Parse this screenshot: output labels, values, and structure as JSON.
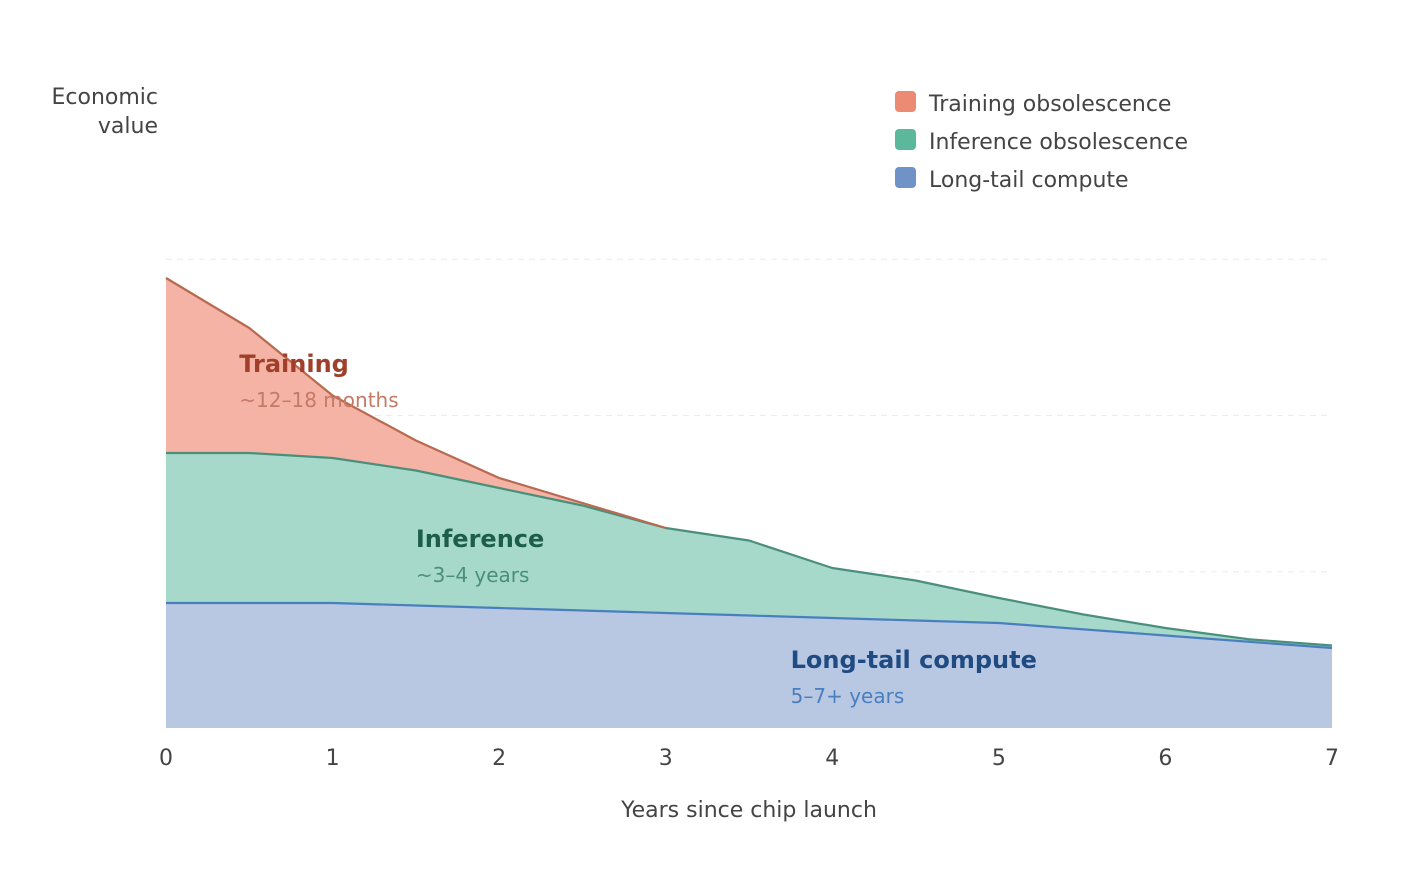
{
  "chart_data": {
    "type": "area",
    "stacked": true,
    "x": [
      0,
      0.5,
      1,
      1.5,
      2,
      2.5,
      3,
      3.5,
      4,
      4.5,
      5,
      5.5,
      6,
      6.5,
      7
    ],
    "xlabel": "Years since chip launch",
    "ylabel": "Economic value",
    "xlim": [
      0,
      7
    ],
    "ylim": [
      0,
      5
    ],
    "x_ticks": [
      "0",
      "1",
      "2",
      "3",
      "4",
      "5",
      "6",
      "7"
    ],
    "y_ticks_shown": false,
    "grid": "horizontal dashed, faint",
    "legend_position": "top-right",
    "series": [
      {
        "name": "Long-tail compute",
        "color": "#6f93c6",
        "fill": "#b8c8e2",
        "line": "#4a7fbf",
        "values": [
          1.0,
          1.0,
          1.0,
          0.98,
          0.96,
          0.94,
          0.92,
          0.9,
          0.88,
          0.86,
          0.84,
          0.79,
          0.74,
          0.69,
          0.64
        ]
      },
      {
        "name": "Inference obsolescence",
        "color": "#5bb89b",
        "fill": "#a6d9c9",
        "line": "#4a8f7c",
        "values": [
          1.2,
          1.2,
          1.16,
          1.08,
          0.96,
          0.84,
          0.68,
          0.6,
          0.4,
          0.32,
          0.2,
          0.12,
          0.06,
          0.02,
          0.02
        ]
      },
      {
        "name": "Training obsolescence",
        "color": "#ec8a74",
        "fill": "#f4b3a5",
        "line": "#b86a50",
        "values": [
          1.4,
          1.0,
          0.5,
          0.24,
          0.08,
          0.02,
          0.0,
          0.0,
          0.0,
          0.0,
          0.0,
          0.0,
          0.0,
          0.0,
          0.0
        ]
      }
    ],
    "annotations": [
      {
        "title": "Training",
        "subtitle": "~12–18 months",
        "title_color": "#a0402a",
        "subtitle_color": "#c47a66",
        "x": 0.44,
        "y": 2.85
      },
      {
        "title": "Inference",
        "subtitle": "~3–4 years",
        "title_color": "#1d5e4a",
        "subtitle_color": "#4a8f7c",
        "x": 1.5,
        "y": 1.45
      },
      {
        "title": "Long-tail compute",
        "subtitle": "5–7+ years",
        "title_color": "#1f4b82",
        "subtitle_color": "#4a7fbf",
        "x": 3.75,
        "y": 0.48
      }
    ]
  }
}
